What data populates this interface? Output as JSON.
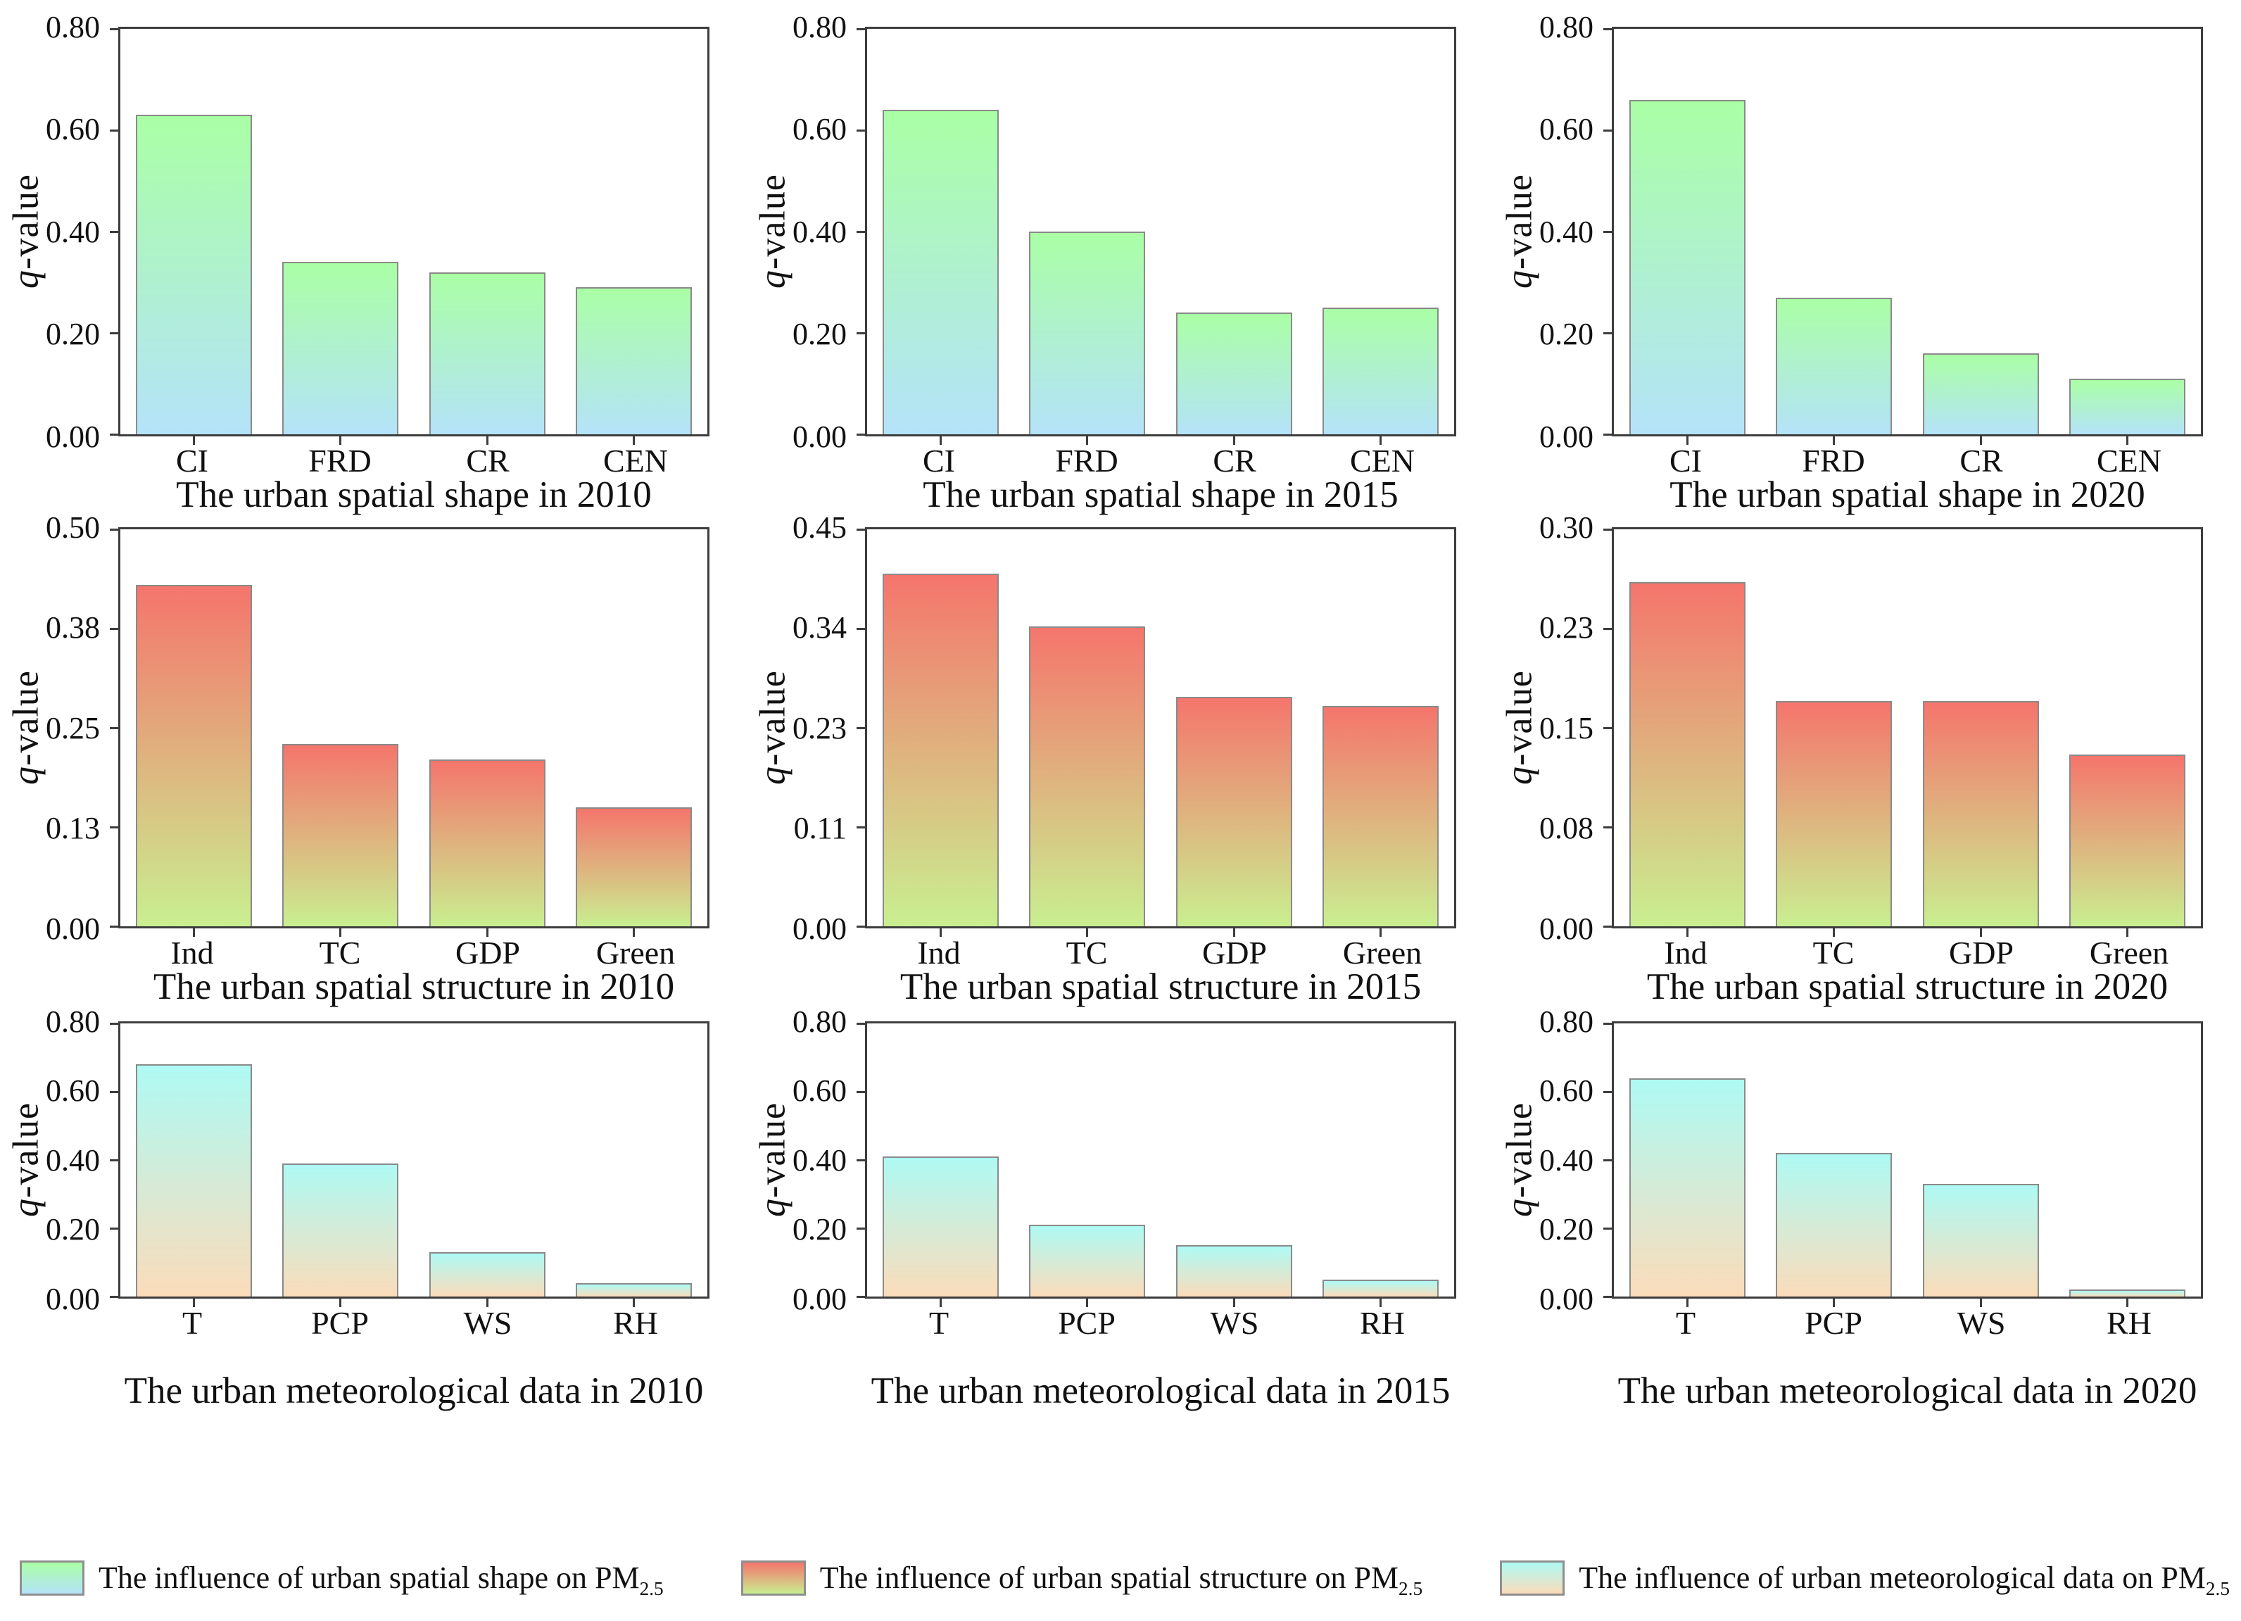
{
  "page": {
    "ylabel_q": "q",
    "ylabel_rest": "-value"
  },
  "chart_data": [
    {
      "type": "bar",
      "title": "The urban spatial shape in 2010",
      "categories": [
        "CI",
        "FRD",
        "CR",
        "CEN"
      ],
      "values": [
        0.63,
        0.34,
        0.32,
        0.29
      ],
      "ylabel": "q-value",
      "yticks": [
        "0.00",
        "0.20",
        "0.40",
        "0.60",
        "0.80"
      ],
      "ylim": [
        0,
        0.8
      ],
      "gradient_top": "#aaffa5",
      "gradient_bottom": "#b4e3f9"
    },
    {
      "type": "bar",
      "title": "The urban spatial shape in 2015",
      "categories": [
        "CI",
        "FRD",
        "CR",
        "CEN"
      ],
      "values": [
        0.64,
        0.4,
        0.24,
        0.25
      ],
      "ylabel": "q-value",
      "yticks": [
        "0.00",
        "0.20",
        "0.40",
        "0.60",
        "0.80"
      ],
      "ylim": [
        0,
        0.8
      ],
      "gradient_top": "#aaffa5",
      "gradient_bottom": "#b4e3f9"
    },
    {
      "type": "bar",
      "title": "The urban spatial shape in 2020",
      "categories": [
        "CI",
        "FRD",
        "CR",
        "CEN"
      ],
      "values": [
        0.66,
        0.27,
        0.16,
        0.11
      ],
      "ylabel": "q-value",
      "yticks": [
        "0.00",
        "0.20",
        "0.40",
        "0.60",
        "0.80"
      ],
      "ylim": [
        0,
        0.8
      ],
      "gradient_top": "#aaffa5",
      "gradient_bottom": "#b4e3f9"
    },
    {
      "type": "bar",
      "title": "The urban spatial structure in 2010",
      "categories": [
        "Ind",
        "TC",
        "GDP",
        "Green"
      ],
      "values": [
        0.43,
        0.23,
        0.21,
        0.15
      ],
      "ylabel": "q-value",
      "yticks": [
        "0.00",
        "0.13",
        "0.25",
        "0.38",
        "0.50"
      ],
      "ylim": [
        0,
        0.5
      ],
      "gradient_top": "#f5756c",
      "gradient_bottom": "#c9ef90"
    },
    {
      "type": "bar",
      "title": "The urban spatial structure in 2015",
      "categories": [
        "Ind",
        "TC",
        "GDP",
        "Green"
      ],
      "values": [
        0.4,
        0.34,
        0.26,
        0.25
      ],
      "ylabel": "q-value",
      "yticks": [
        "0.00",
        "0.11",
        "0.23",
        "0.34",
        "0.45"
      ],
      "ylim": [
        0,
        0.45
      ],
      "gradient_top": "#f5756c",
      "gradient_bottom": "#c9ef90"
    },
    {
      "type": "bar",
      "title": "The urban spatial structure in 2020",
      "categories": [
        "Ind",
        "TC",
        "GDP",
        "Green"
      ],
      "values": [
        0.26,
        0.17,
        0.17,
        0.13
      ],
      "ylabel": "q-value",
      "yticks": [
        "0.00",
        "0.08",
        "0.15",
        "0.23",
        "0.30"
      ],
      "ylim": [
        0,
        0.3
      ],
      "gradient_top": "#f5756c",
      "gradient_bottom": "#c9ef90"
    },
    {
      "type": "bar",
      "title": "The urban meteorological data in 2010",
      "categories": [
        "T",
        "PCP",
        "WS",
        "RH"
      ],
      "values": [
        0.68,
        0.39,
        0.13,
        0.04
      ],
      "ylabel": "q-value",
      "yticks": [
        "0.00",
        "0.20",
        "0.40",
        "0.60",
        "0.80"
      ],
      "ylim": [
        0,
        0.8
      ],
      "gradient_top": "#aefaf4",
      "gradient_bottom": "#fbdcba"
    },
    {
      "type": "bar",
      "title": "The urban meteorological data in 2015",
      "categories": [
        "T",
        "PCP",
        "WS",
        "RH"
      ],
      "values": [
        0.41,
        0.21,
        0.15,
        0.05
      ],
      "ylabel": "q-value",
      "yticks": [
        "0.00",
        "0.20",
        "0.40",
        "0.60",
        "0.80"
      ],
      "ylim": [
        0,
        0.8
      ],
      "gradient_top": "#aefaf4",
      "gradient_bottom": "#fbdcba"
    },
    {
      "type": "bar",
      "title": "The urban meteorological data in 2020",
      "categories": [
        "T",
        "PCP",
        "WS",
        "RH"
      ],
      "values": [
        0.64,
        0.42,
        0.33,
        0.02
      ],
      "ylabel": "q-value",
      "yticks": [
        "0.00",
        "0.20",
        "0.40",
        "0.60",
        "0.80"
      ],
      "ylim": [
        0,
        0.8
      ],
      "gradient_top": "#aefaf4",
      "gradient_bottom": "#fbdcba"
    }
  ],
  "legend": [
    {
      "label": "The influence of urban spatial shape on PM",
      "sub": "2.5",
      "gradient_top": "#aaffa5",
      "gradient_bottom": "#b4e3f9"
    },
    {
      "label": "The influence of urban spatial structure on PM",
      "sub": "2.5",
      "gradient_top": "#f5756c",
      "gradient_bottom": "#c9ef90"
    },
    {
      "label": "The influence of urban meteorological data on PM",
      "sub": "2.5",
      "gradient_top": "#aefaf4",
      "gradient_bottom": "#fbdcba"
    }
  ]
}
